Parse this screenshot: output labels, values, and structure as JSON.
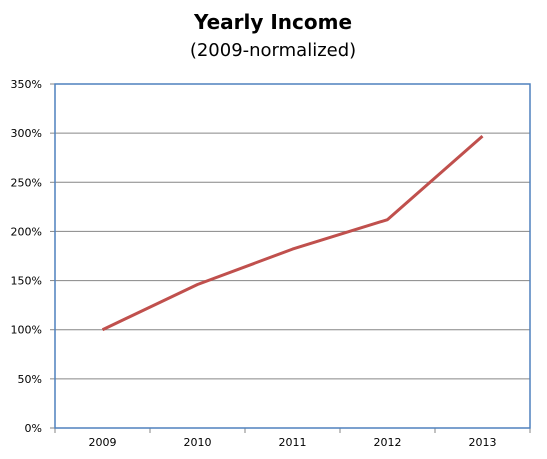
{
  "chart_data": {
    "type": "line",
    "title": "Yearly Income",
    "subtitle": "(2009-normalized)",
    "xlabel": "",
    "ylabel": "",
    "categories": [
      "2009",
      "2010",
      "2011",
      "2012",
      "2013"
    ],
    "series": [
      {
        "values": [
          100,
          146,
          182,
          212,
          297
        ]
      }
    ],
    "ylim": [
      0,
      350
    ],
    "yticks": [
      0,
      50,
      100,
      150,
      200,
      250,
      300,
      350
    ],
    "ytick_labels": [
      "0%",
      "50%",
      "100%",
      "150%",
      "200%",
      "250%",
      "300%",
      "350%"
    ],
    "grid": true,
    "legend": "none",
    "colors": {
      "line": "#c0504d",
      "plot_border": "#4f81bd",
      "grid": "#868686"
    }
  }
}
